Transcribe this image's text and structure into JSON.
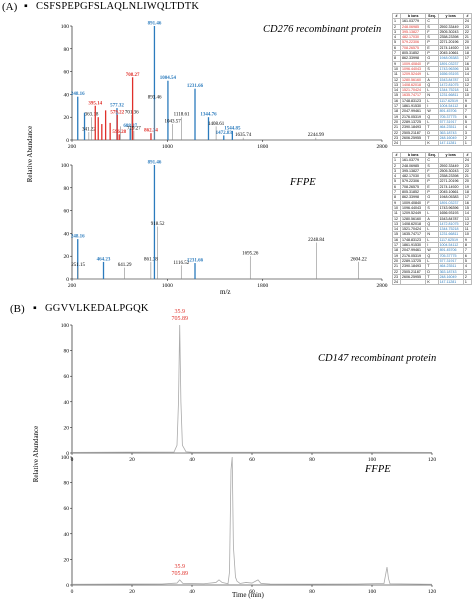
{
  "panel_a": {
    "label": "(A)",
    "bullet": "▪",
    "peptide": "CSFSPEPGFSLAQLNLIWQLTDTK",
    "y_axis_title": "Relative Abundance",
    "x_axis_title": "m/z",
    "top_title": "CD276 recombinant protein",
    "bottom_title": "FFPE",
    "table_headers": [
      "#",
      "b ions",
      "Seq.",
      "y ions",
      "#"
    ],
    "table_top": [
      [
        "1",
        "161.03779",
        "C",
        "",
        "24"
      ],
      [
        "2",
        "248.06985",
        "S",
        "2592.33449",
        "23"
      ],
      [
        "3",
        "395.13827",
        "F",
        "2505.30243",
        "22"
      ],
      [
        "4",
        "482.17030",
        "S",
        "2358.23398",
        "21"
      ],
      [
        "5",
        "579.22306",
        "P",
        "2271.20196",
        "20"
      ],
      [
        "6",
        "708.26575",
        "E",
        "2174.14920",
        "19"
      ],
      [
        "7",
        "805.31852",
        "P",
        "2045.10661",
        "18"
      ],
      [
        "8",
        "862.33998",
        "G",
        "1948.05383",
        "17"
      ],
      [
        "9",
        "1009.40840",
        "F",
        "1891.03237",
        "16"
      ],
      [
        "10",
        "1096.44043",
        "S",
        "1743.96396",
        "15"
      ],
      [
        "11",
        "1209.52449",
        "L",
        "1656.93193",
        "14"
      ],
      [
        "12",
        "1280.56160",
        "A",
        "1543.84787",
        "13"
      ],
      [
        "13",
        "1408.62018",
        "Q",
        "1472.81075",
        "12"
      ],
      [
        "14",
        "1521.70424",
        "L",
        "1344.75218",
        "11"
      ],
      [
        "15",
        "1635.74717",
        "N",
        "1231.66811",
        "10"
      ],
      [
        "16",
        "1748.83123",
        "L",
        "1117.62519",
        "9"
      ],
      [
        "17",
        "1861.91530",
        "I",
        "1004.54112",
        "8"
      ],
      [
        "18",
        "2047.99461",
        "W",
        "891.45706",
        "7"
      ],
      [
        "19",
        "2176.05319",
        "Q",
        "705.37775",
        "6"
      ],
      [
        "20",
        "2289.13725",
        "L",
        "577.31917",
        "5"
      ],
      [
        "21",
        "2390.18493",
        "T",
        "464.23511",
        "4"
      ],
      [
        "22",
        "2505.21187",
        "D",
        "363.18743",
        "3"
      ],
      [
        "23",
        "2606.25955",
        "T",
        "248.16049",
        "2"
      ],
      [
        "24",
        "",
        "K",
        "147.11281",
        "1"
      ]
    ],
    "table_bottom": [
      [
        "1",
        "161.03779",
        "C",
        "",
        "24"
      ],
      [
        "2",
        "248.06985",
        "S",
        "2592.33449",
        "23"
      ],
      [
        "3",
        "395.13827",
        "F",
        "2505.30243",
        "22"
      ],
      [
        "4",
        "482.17030",
        "S",
        "2358.23398",
        "21"
      ],
      [
        "5",
        "579.22306",
        "P",
        "2271.20196",
        "20"
      ],
      [
        "6",
        "708.26575",
        "E",
        "2174.14920",
        "19"
      ],
      [
        "7",
        "805.31852",
        "P",
        "2045.10661",
        "18"
      ],
      [
        "8",
        "862.33998",
        "G",
        "1948.05383",
        "17"
      ],
      [
        "9",
        "1009.40840",
        "F",
        "1891.03237",
        "16"
      ],
      [
        "10",
        "1096.44043",
        "S",
        "1743.96396",
        "15"
      ],
      [
        "11",
        "1209.52449",
        "L",
        "1656.93193",
        "14"
      ],
      [
        "12",
        "1280.56160",
        "A",
        "1543.84787",
        "13"
      ],
      [
        "13",
        "1408.62018",
        "Q",
        "1472.81075",
        "12"
      ],
      [
        "14",
        "1521.70424",
        "L",
        "1344.75218",
        "11"
      ],
      [
        "15",
        "1635.74717",
        "N",
        "1231.66811",
        "10"
      ],
      [
        "16",
        "1748.83123",
        "L",
        "1117.62519",
        "9"
      ],
      [
        "17",
        "1861.91530",
        "I",
        "1004.54112",
        "8"
      ],
      [
        "18",
        "2047.99461",
        "W",
        "891.45706",
        "7"
      ],
      [
        "19",
        "2176.05319",
        "Q",
        "705.37775",
        "6"
      ],
      [
        "20",
        "2289.13725",
        "L",
        "577.31917",
        "5"
      ],
      [
        "21",
        "2390.18493",
        "T",
        "464.23511",
        "4"
      ],
      [
        "22",
        "2505.21187",
        "D",
        "363.18743",
        "3"
      ],
      [
        "23",
        "2606.25955",
        "T",
        "248.16049",
        "2"
      ],
      [
        "24",
        "",
        "K",
        "147.11281",
        "1"
      ]
    ],
    "table_colors": {
      "b_top_red_rows": [
        2,
        3,
        4,
        5,
        6,
        9,
        10,
        11,
        12,
        13,
        14,
        15
      ],
      "y_top_blue_rows": [
        8,
        9,
        10,
        11,
        12,
        13,
        14,
        15,
        16,
        17,
        18,
        19,
        20,
        21,
        22,
        23,
        24
      ],
      "y_bottom_blue_rows": [
        9,
        13,
        14,
        15,
        16,
        17,
        18,
        19,
        20,
        21,
        22,
        23,
        24
      ]
    }
  },
  "panel_b": {
    "label": "(B)",
    "bullet": "▪",
    "peptide": "GGVVLKEDALPGQK",
    "y_axis_title": "Relative Abundance",
    "x_axis_title": "Time (min)",
    "top_title": "CD147 recombinant protein",
    "bottom_title": "FFPE"
  },
  "chart_data": [
    {
      "type": "bar",
      "title": "CD276 recombinant protein",
      "xlabel": "m/z",
      "ylabel": "Relative Abundance",
      "xlim": [
        200,
        2800
      ],
      "ylim": [
        0,
        100
      ],
      "xticks": [
        200,
        1000,
        1800,
        2800
      ],
      "yticks": [
        0,
        20,
        40,
        60,
        80,
        100
      ],
      "colors": {
        "b": "#e0302a",
        "y": "#2b7bbd",
        "other": "#888888"
      },
      "peaks": [
        {
          "mz": 248.16,
          "i": 38,
          "ion": "y",
          "label": "248.16"
        },
        {
          "mz": 305,
          "i": 24,
          "ion": "y",
          "label": ""
        },
        {
          "mz": 341.22,
          "i": 7,
          "ion": "other",
          "label": "341.22"
        },
        {
          "mz": 363.18,
          "i": 20,
          "ion": "other",
          "label": "363.18"
        },
        {
          "mz": 395.14,
          "i": 30,
          "ion": "b",
          "label": "395.14"
        },
        {
          "mz": 420,
          "i": 20,
          "ion": "b",
          "label": ""
        },
        {
          "mz": 450,
          "i": 14,
          "ion": "b",
          "label": ""
        },
        {
          "mz": 482,
          "i": 26,
          "ion": "b",
          "label": ""
        },
        {
          "mz": 520,
          "i": 15,
          "ion": "b",
          "label": ""
        },
        {
          "mz": 577.32,
          "i": 28,
          "ion": "y",
          "label": "577.32"
        },
        {
          "mz": 579.22,
          "i": 22,
          "ion": "b",
          "label": "579.22"
        },
        {
          "mz": 596.28,
          "i": 5,
          "ion": "b",
          "label": "596.28"
        },
        {
          "mz": 606.28,
          "i": 12,
          "ion": "other",
          "label": ""
        },
        {
          "mz": 688.37,
          "i": 10,
          "ion": "y",
          "label": "688.37"
        },
        {
          "mz": 701.36,
          "i": 22,
          "ion": "other",
          "label": "701.36"
        },
        {
          "mz": 708.27,
          "i": 55,
          "ion": "b",
          "label": "708.27"
        },
        {
          "mz": 719.27,
          "i": 8,
          "ion": "other",
          "label": "719.27"
        },
        {
          "mz": 862.34,
          "i": 6,
          "ion": "b",
          "label": "862.34"
        },
        {
          "mz": 891.46,
          "i": 100,
          "ion": "y",
          "label": "891.46"
        },
        {
          "mz": 893.46,
          "i": 35,
          "ion": "other",
          "label": "893.46"
        },
        {
          "mz": 1004.54,
          "i": 52,
          "ion": "y",
          "label": "1004.54"
        },
        {
          "mz": 1043.57,
          "i": 14,
          "ion": "other",
          "label": "1043.57"
        },
        {
          "mz": 1118.61,
          "i": 20,
          "ion": "other",
          "label": "1118.61"
        },
        {
          "mz": 1231.66,
          "i": 45,
          "ion": "y",
          "label": "1231.66"
        },
        {
          "mz": 1344.76,
          "i": 20,
          "ion": "y",
          "label": "1344.76"
        },
        {
          "mz": 1408.61,
          "i": 12,
          "ion": "other",
          "label": "1408.61"
        },
        {
          "mz": 1472.83,
          "i": 4,
          "ion": "y",
          "label": "1472.83"
        },
        {
          "mz": 1544.85,
          "i": 8,
          "ion": "y",
          "label": "1544.85"
        },
        {
          "mz": 1635.74,
          "i": 2,
          "ion": "other",
          "label": "1635.74"
        },
        {
          "mz": 2244.99,
          "i": 2,
          "ion": "other",
          "label": "2244.99"
        }
      ]
    },
    {
      "type": "bar",
      "title": "FFPE",
      "xlabel": "m/z",
      "ylabel": "Relative Abundance",
      "xlim": [
        200,
        2800
      ],
      "ylim": [
        0,
        100
      ],
      "xticks": [
        200,
        1000,
        1800,
        2800
      ],
      "yticks": [
        0,
        20,
        40,
        60,
        80,
        100
      ],
      "colors": {
        "b": "#e0302a",
        "y": "#2b7bbd",
        "other": "#888888"
      },
      "peaks": [
        {
          "mz": 248.16,
          "i": 35,
          "ion": "y",
          "label": "248.16"
        },
        {
          "mz": 251.15,
          "i": 10,
          "ion": "other",
          "label": "251.15"
        },
        {
          "mz": 464.23,
          "i": 15,
          "ion": "y",
          "label": "464.23"
        },
        {
          "mz": 641.29,
          "i": 10,
          "ion": "other",
          "label": "641.29"
        },
        {
          "mz": 861.38,
          "i": 15,
          "ion": "other",
          "label": "861.38"
        },
        {
          "mz": 891.46,
          "i": 100,
          "ion": "y",
          "label": "891.46"
        },
        {
          "mz": 918.52,
          "i": 46,
          "ion": "other",
          "label": "918.52"
        },
        {
          "mz": 1116.52,
          "i": 12,
          "ion": "other",
          "label": "1116.52"
        },
        {
          "mz": 1231.66,
          "i": 14,
          "ion": "y",
          "label": "1231.66"
        },
        {
          "mz": 1695.26,
          "i": 20,
          "ion": "other",
          "label": "1695.26"
        },
        {
          "mz": 2248.84,
          "i": 32,
          "ion": "other",
          "label": "2248.84"
        },
        {
          "mz": 2604.22,
          "i": 15,
          "ion": "other",
          "label": "2604.22"
        }
      ]
    },
    {
      "type": "line",
      "title": "CD147 recombinant protein",
      "xlabel": "Time (min)",
      "ylabel": "Relative Abundance",
      "xlim": [
        0,
        120
      ],
      "ylim": [
        0,
        100
      ],
      "xticks": [
        0,
        20,
        40,
        60,
        80,
        100,
        120
      ],
      "yticks": [
        0,
        20,
        40,
        60,
        80,
        100
      ],
      "annotation": {
        "x": 35.9,
        "lines": [
          "35.9",
          "705.89"
        ],
        "color": "#e0302a"
      },
      "series": [
        {
          "color": "#aaaaaa",
          "points": [
            [
              0,
              0.5
            ],
            [
              34,
              0.8
            ],
            [
              35,
              6
            ],
            [
              35.5,
              40
            ],
            [
              35.9,
              100
            ],
            [
              36.3,
              40
            ],
            [
              36.8,
              6
            ],
            [
              38,
              1
            ],
            [
              40,
              0.6
            ],
            [
              120,
              0.5
            ]
          ]
        }
      ]
    },
    {
      "type": "line",
      "title": "FFPE",
      "xlabel": "Time (min)",
      "ylabel": "Relative Abundance",
      "xlim": [
        0,
        120
      ],
      "ylim": [
        0,
        100
      ],
      "xticks": [
        0,
        20,
        40,
        60,
        80,
        100,
        120
      ],
      "yticks": [
        0,
        20,
        40,
        60,
        80,
        100
      ],
      "annotation": {
        "x": 35.9,
        "lines": [
          "35.9",
          "705.89"
        ],
        "color": "#e0302a"
      },
      "series": [
        {
          "color": "#aaaaaa",
          "points": [
            [
              0,
              0.6
            ],
            [
              30,
              0.8
            ],
            [
              35,
              1.5
            ],
            [
              35.9,
              4
            ],
            [
              37,
              1.2
            ],
            [
              44,
              1
            ],
            [
              48,
              2
            ],
            [
              49,
              4
            ],
            [
              50,
              2
            ],
            [
              52,
              1
            ],
            [
              52.5,
              10
            ],
            [
              53,
              90
            ],
            [
              53.4,
              100
            ],
            [
              53.8,
              30
            ],
            [
              54.5,
              6
            ],
            [
              55,
              3
            ],
            [
              56,
              1.2
            ],
            [
              58,
              2
            ],
            [
              60,
              1.5
            ],
            [
              62,
              4
            ],
            [
              63,
              1.2
            ],
            [
              66,
              0.8
            ],
            [
              80,
              0.7
            ],
            [
              95,
              0.8
            ],
            [
              104,
              1.2
            ],
            [
              105,
              14
            ],
            [
              105.5,
              5
            ],
            [
              106,
              1
            ],
            [
              120,
              0.6
            ]
          ]
        }
      ]
    }
  ]
}
